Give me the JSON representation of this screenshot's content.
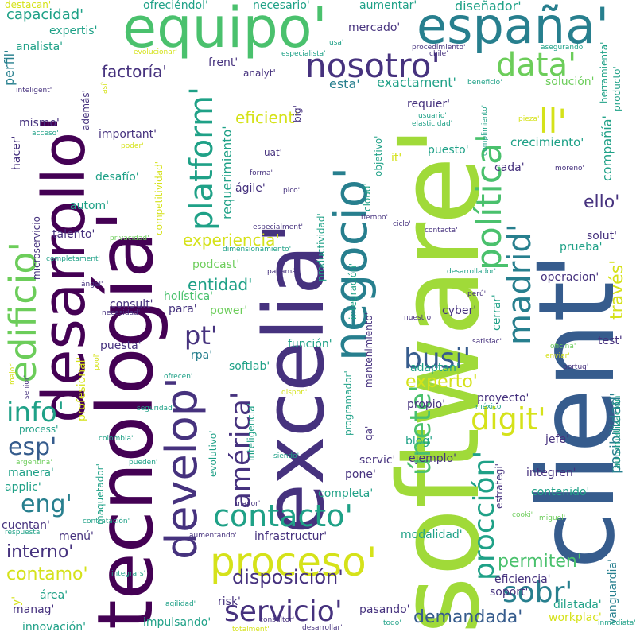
{
  "palette": {
    "lime": "#a0da39",
    "green": "#4ac16d",
    "teal": "#1fa187",
    "cyan": "#277f8e",
    "blue": "#365c8d",
    "indigo": "#46327e",
    "purple": "#440154",
    "yellow": "#d5e21a",
    "light_green": "#6ccd5a"
  },
  "words": [
    {
      "text": "software'",
      "color": "lime"
    },
    {
      "text": "client'",
      "color": "blue"
    },
    {
      "text": "tecnología'",
      "color": "purple"
    },
    {
      "text": "excelia'",
      "color": "indigo"
    },
    {
      "text": "desarrollo'",
      "color": "purple"
    },
    {
      "text": "equipo'",
      "color": "green"
    },
    {
      "text": "españa'",
      "color": "cyan"
    },
    {
      "text": "negocio'",
      "color": "cyan"
    },
    {
      "text": "develop'",
      "color": "indigo"
    },
    {
      "text": "edificio'",
      "color": "light_green"
    },
    {
      "text": "proceso'",
      "color": "yellow"
    },
    {
      "text": "política'",
      "color": "green"
    },
    {
      "text": "nosotro'",
      "color": "indigo"
    },
    {
      "text": "platform'",
      "color": "teal"
    },
    {
      "text": "madrid'",
      "color": "cyan"
    },
    {
      "text": "data'",
      "color": "light_green"
    },
    {
      "text": "servicio'",
      "color": "indigo"
    },
    {
      "text": "contacto'",
      "color": "teal"
    },
    {
      "text": "américa'",
      "color": "indigo"
    },
    {
      "text": "procción'",
      "color": "teal"
    },
    {
      "text": "únete'",
      "color": "green"
    },
    {
      "text": "busi'",
      "color": "blue"
    },
    {
      "text": "digit'",
      "color": "yellow"
    },
    {
      "text": "ll'",
      "color": "yellow"
    },
    {
      "text": "sobr'",
      "color": "cyan"
    },
    {
      "text": "info'",
      "color": "teal"
    },
    {
      "text": "esp'",
      "color": "blue"
    },
    {
      "text": "eng'",
      "color": "cyan"
    },
    {
      "text": "pt'",
      "color": "indigo"
    },
    {
      "text": "disposición'",
      "color": "indigo"
    },
    {
      "text": "contamo'",
      "color": "yellow"
    },
    {
      "text": "interno'",
      "color": "indigo"
    },
    {
      "text": "experto'",
      "color": "yellow"
    },
    {
      "text": "permiten'",
      "color": "green"
    },
    {
      "text": "demandada'",
      "color": "blue"
    },
    {
      "text": "factoría'",
      "color": "indigo"
    },
    {
      "text": "experiencia'",
      "color": "yellow"
    },
    {
      "text": "eficient'",
      "color": "yellow"
    },
    {
      "text": "entidad'",
      "color": "teal"
    },
    {
      "text": "requerimiento'",
      "color": "teal"
    },
    {
      "text": "crecimiento'",
      "color": "teal"
    },
    {
      "text": "compañía'",
      "color": "teal"
    },
    {
      "text": "través'",
      "color": "yellow"
    },
    {
      "text": "posibilidad'",
      "color": "cyan"
    },
    {
      "text": "solución'",
      "color": "light_green"
    },
    {
      "text": "vanguardia'",
      "color": "cyan"
    },
    {
      "text": "ello'",
      "color": "indigo"
    },
    {
      "text": "capacidad'",
      "color": "teal"
    },
    {
      "text": "diseñador'",
      "color": "teal"
    },
    {
      "text": "ofreciéndol'",
      "color": "teal"
    },
    {
      "text": "necesario'",
      "color": "teal"
    },
    {
      "text": "aumentar'",
      "color": "teal"
    },
    {
      "text": "destacan'",
      "color": "yellow"
    },
    {
      "text": "expertis'",
      "color": "teal"
    },
    {
      "text": "analista'",
      "color": "teal"
    },
    {
      "text": "mercado'",
      "color": "indigo"
    },
    {
      "text": "perfil'",
      "color": "cyan"
    },
    {
      "text": "esta'",
      "color": "cyan"
    },
    {
      "text": "exactament'",
      "color": "teal"
    },
    {
      "text": "requier'",
      "color": "indigo"
    },
    {
      "text": "puesto'",
      "color": "teal"
    },
    {
      "text": "cada'",
      "color": "indigo"
    },
    {
      "text": "solut'",
      "color": "indigo"
    },
    {
      "text": "prueba'",
      "color": "teal"
    },
    {
      "text": "operacion'",
      "color": "indigo"
    },
    {
      "text": "mismo'",
      "color": "indigo"
    },
    {
      "text": "important'",
      "color": "indigo"
    },
    {
      "text": "hacer'",
      "color": "indigo"
    },
    {
      "text": "desafío'",
      "color": "teal"
    },
    {
      "text": "ágile'",
      "color": "indigo"
    },
    {
      "text": "autom'",
      "color": "teal"
    },
    {
      "text": "talento'",
      "color": "indigo"
    },
    {
      "text": "podcast'",
      "color": "light_green"
    },
    {
      "text": "holística'",
      "color": "green"
    },
    {
      "text": "consult'",
      "color": "indigo"
    },
    {
      "text": "para'",
      "color": "indigo"
    },
    {
      "text": "power'",
      "color": "light_green"
    },
    {
      "text": "puesta'",
      "color": "indigo"
    },
    {
      "text": "rpa'",
      "color": "cyan"
    },
    {
      "text": "softlab'",
      "color": "teal"
    },
    {
      "text": "función'",
      "color": "teal"
    },
    {
      "text": "cyber'",
      "color": "indigo"
    },
    {
      "text": "cerrar'",
      "color": "teal"
    },
    {
      "text": "test'",
      "color": "indigo"
    },
    {
      "text": "adaptan'",
      "color": "teal"
    },
    {
      "text": "proyecto'",
      "color": "indigo"
    },
    {
      "text": "propio'",
      "color": "indigo"
    },
    {
      "text": "blog'",
      "color": "teal"
    },
    {
      "text": "jefe'",
      "color": "indigo"
    },
    {
      "text": "servic'",
      "color": "indigo"
    },
    {
      "text": "ejemplo'",
      "color": "indigo"
    },
    {
      "text": "integren'",
      "color": "indigo"
    },
    {
      "text": "contenido'",
      "color": "teal"
    },
    {
      "text": "pone'",
      "color": "indigo"
    },
    {
      "text": "completa'",
      "color": "teal"
    },
    {
      "text": "modalidad'",
      "color": "teal"
    },
    {
      "text": "soport'",
      "color": "indigo"
    },
    {
      "text": "eficiencia'",
      "color": "indigo"
    },
    {
      "text": "dilatada'",
      "color": "teal"
    },
    {
      "text": "workplac'",
      "color": "yellow"
    },
    {
      "text": "pasando'",
      "color": "indigo"
    },
    {
      "text": "infrastructur'",
      "color": "indigo"
    },
    {
      "text": "risk'",
      "color": "indigo"
    },
    {
      "text": "impulsando'",
      "color": "teal"
    },
    {
      "text": "innovación'",
      "color": "teal"
    },
    {
      "text": "manag'",
      "color": "indigo"
    },
    {
      "text": "área'",
      "color": "teal"
    },
    {
      "text": "cuentan'",
      "color": "indigo"
    },
    {
      "text": "menú'",
      "color": "indigo"
    },
    {
      "text": "manera'",
      "color": "teal"
    },
    {
      "text": "applic'",
      "color": "teal"
    },
    {
      "text": "process'",
      "color": "teal"
    },
    {
      "text": "frent'",
      "color": "indigo"
    },
    {
      "text": "analyt'",
      "color": "indigo"
    },
    {
      "text": "uat'",
      "color": "indigo"
    },
    {
      "text": "it'",
      "color": "yellow"
    },
    {
      "text": "herramienta'",
      "color": "teal"
    },
    {
      "text": "producto'",
      "color": "teal"
    },
    {
      "text": "objetivo'",
      "color": "teal"
    },
    {
      "text": "cloud'",
      "color": "teal"
    },
    {
      "text": "productividad'",
      "color": "teal"
    },
    {
      "text": "integración'",
      "color": "teal"
    },
    {
      "text": "mantenimiento'",
      "color": "indigo"
    },
    {
      "text": "programador'",
      "color": "teal"
    },
    {
      "text": "inteligencia'",
      "color": "teal"
    },
    {
      "text": "estrategi'",
      "color": "indigo"
    },
    {
      "text": "evolutivo'",
      "color": "teal"
    },
    {
      "text": "maquetador'",
      "color": "teal"
    },
    {
      "text": "profesional'",
      "color": "yellow"
    },
    {
      "text": "microservicio'",
      "color": "indigo"
    },
    {
      "text": "competitividad'",
      "color": "yellow"
    },
    {
      "text": "además'",
      "color": "indigo"
    },
    {
      "text": "big'",
      "color": "indigo"
    },
    {
      "text": "automatización'",
      "color": "teal"
    },
    {
      "text": "qa'",
      "color": "indigo"
    },
    {
      "text": "chile'",
      "color": "indigo"
    },
    {
      "text": "perú'",
      "color": "indigo"
    },
    {
      "text": "usa'",
      "color": "teal"
    },
    {
      "text": "evolucionar'",
      "color": "yellow"
    },
    {
      "text": "especialista'",
      "color": "teal"
    },
    {
      "text": "procedimiento'",
      "color": "indigo"
    },
    {
      "text": "asegurando'",
      "color": "teal"
    },
    {
      "text": "beneficio'",
      "color": "teal"
    },
    {
      "text": "inteligent'",
      "color": "indigo"
    },
    {
      "text": "así'",
      "color": "yellow"
    },
    {
      "text": "usuario'",
      "color": "teal"
    },
    {
      "text": "elasticidad'",
      "color": "teal"
    },
    {
      "text": "pieza'",
      "color": "yellow"
    },
    {
      "text": "cumplimiento'",
      "color": "teal"
    },
    {
      "text": "acceso'",
      "color": "teal"
    },
    {
      "text": "poder'",
      "color": "yellow"
    },
    {
      "text": "moreno'",
      "color": "indigo"
    },
    {
      "text": "forma'",
      "color": "indigo"
    },
    {
      "text": "pico'",
      "color": "indigo"
    },
    {
      "text": "tiempo'",
      "color": "indigo"
    },
    {
      "text": "ciclo'",
      "color": "indigo"
    },
    {
      "text": "contacta'",
      "color": "indigo"
    },
    {
      "text": "especialment'",
      "color": "indigo"
    },
    {
      "text": "privacidad'",
      "color": "light_green"
    },
    {
      "text": "dimensionamiento'",
      "color": "teal"
    },
    {
      "text": "completament'",
      "color": "teal"
    },
    {
      "text": "panamá'",
      "color": "indigo"
    },
    {
      "text": "desarrollador'",
      "color": "teal"
    },
    {
      "text": "ángel'",
      "color": "indigo"
    },
    {
      "text": "necesidad'",
      "color": "indigo"
    },
    {
      "text": "nuestro'",
      "color": "indigo"
    },
    {
      "text": "satisfac'",
      "color": "indigo"
    },
    {
      "text": "oficina'",
      "color": "light_green"
    },
    {
      "text": "enviar'",
      "color": "yellow"
    },
    {
      "text": "portug'",
      "color": "indigo"
    },
    {
      "text": "ofrecen'",
      "color": "teal"
    },
    {
      "text": "dispon'",
      "color": "yellow"
    },
    {
      "text": "seguridad'",
      "color": "teal"
    },
    {
      "text": "méxico'",
      "color": "teal"
    },
    {
      "text": "colombia'",
      "color": "teal"
    },
    {
      "text": "siendo'",
      "color": "teal"
    },
    {
      "text": "argentina'",
      "color": "light_green"
    },
    {
      "text": "pueden'",
      "color": "teal"
    },
    {
      "text": "cooki'",
      "color": "light_green"
    },
    {
      "text": "miguel'",
      "color": "light_green"
    },
    {
      "text": "mayor'",
      "color": "indigo"
    },
    {
      "text": "contratación'",
      "color": "teal"
    },
    {
      "text": "respuesta'",
      "color": "teal"
    },
    {
      "text": "aumentando'",
      "color": "indigo"
    },
    {
      "text": "integrars'",
      "color": "teal"
    },
    {
      "text": "agilidad'",
      "color": "teal"
    },
    {
      "text": "consultor'",
      "color": "indigo"
    },
    {
      "text": "totalment'",
      "color": "yellow"
    },
    {
      "text": "desarrollar'",
      "color": "indigo"
    },
    {
      "text": "todo'",
      "color": "teal"
    },
    {
      "text": "inmediata'",
      "color": "teal"
    },
    {
      "text": "major'",
      "color": "yellow"
    },
    {
      "text": "senior'",
      "color": "indigo"
    },
    {
      "text": "pool'",
      "color": "yellow"
    },
    {
      "text": "y'",
      "color": "yellow"
    }
  ]
}
